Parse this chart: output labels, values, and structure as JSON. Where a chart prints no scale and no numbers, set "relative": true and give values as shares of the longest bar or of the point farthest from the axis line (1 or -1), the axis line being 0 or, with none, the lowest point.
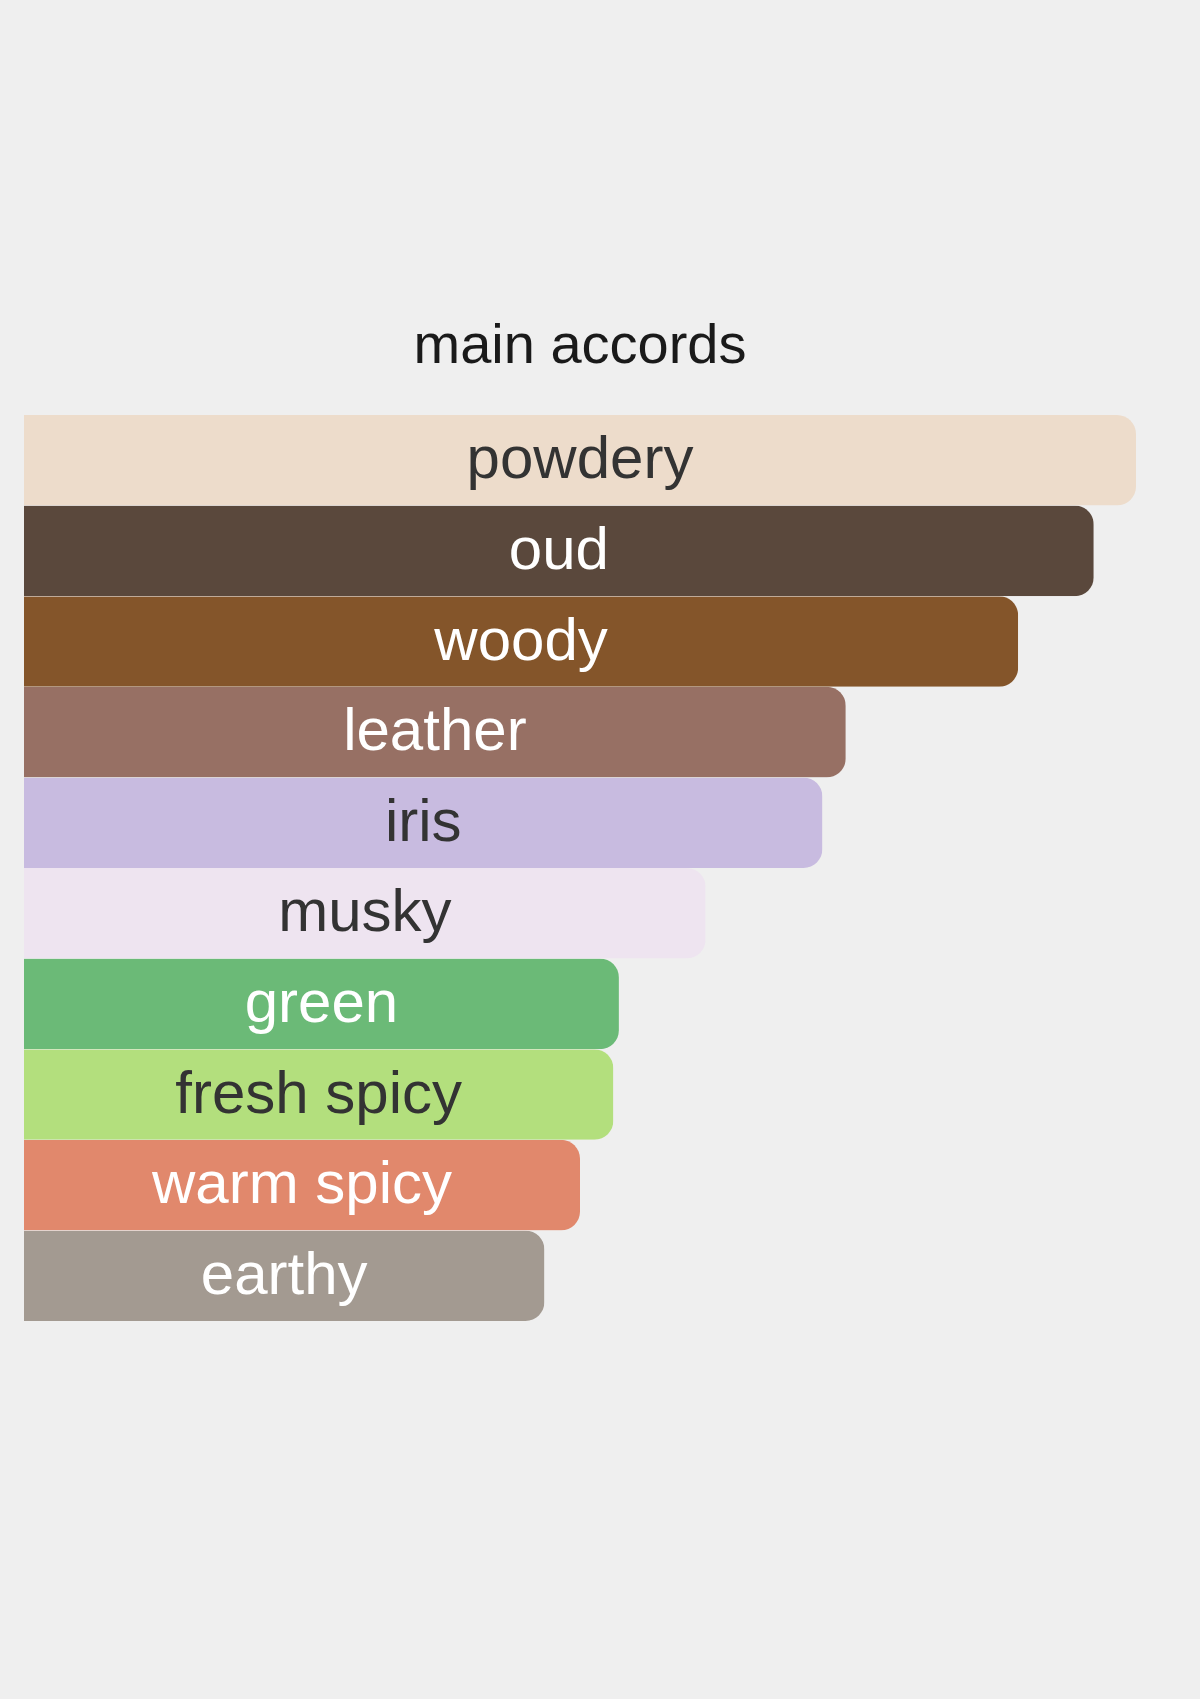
{
  "chart_data": {
    "type": "bar",
    "orientation": "horizontal",
    "relative": true,
    "title": "main accords",
    "categories": [
      "powdery",
      "oud",
      "woody",
      "leather",
      "iris",
      "musky",
      "green",
      "fresh spicy",
      "warm spicy",
      "earthy"
    ],
    "values": [
      1,
      0.962,
      0.894,
      0.739,
      0.718,
      0.613,
      0.535,
      0.53,
      0.5,
      0.468
    ],
    "colors": [
      "#eddccb",
      "#5a483c",
      "#84552a",
      "#977064",
      "#c8bbe0",
      "#eee4f0",
      "#6bba77",
      "#b3df7d",
      "#e1886c",
      "#a39a91"
    ]
  }
}
